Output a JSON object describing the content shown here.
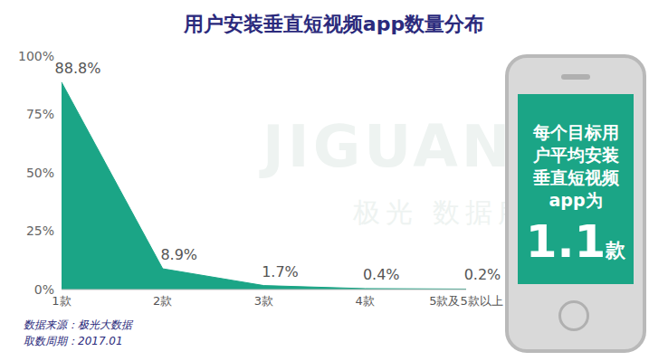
{
  "chart_data": {
    "type": "area",
    "title": "用户安装垂直短视频app数量分布",
    "categories": [
      "1款",
      "2款",
      "3款",
      "4款",
      "5款及5款以上"
    ],
    "values": [
      88.8,
      8.9,
      1.7,
      0.4,
      0.2
    ],
    "value_labels": [
      "88.8%",
      "8.9%",
      "1.7%",
      "0.4%",
      "0.2%"
    ],
    "data_labels": true,
    "color": "#1ba586",
    "ylim": [
      0,
      100
    ],
    "yticks": [
      {
        "value": 0,
        "label": "0%"
      },
      {
        "value": 25,
        "label": "25%"
      },
      {
        "value": 50,
        "label": "50%"
      },
      {
        "value": 75,
        "label": "75%"
      },
      {
        "value": 100,
        "label": "100%"
      }
    ],
    "grid": false,
    "annotation": {
      "lines": [
        "每个目标用",
        "户平均安装",
        "垂直短视频",
        "app为"
      ],
      "average": 1.1,
      "unit": "款"
    },
    "source": "数据来源：极光大数据",
    "period": "取数周期：2017.01",
    "watermark": [
      "JIGUANG",
      "极光 数据服务"
    ]
  }
}
